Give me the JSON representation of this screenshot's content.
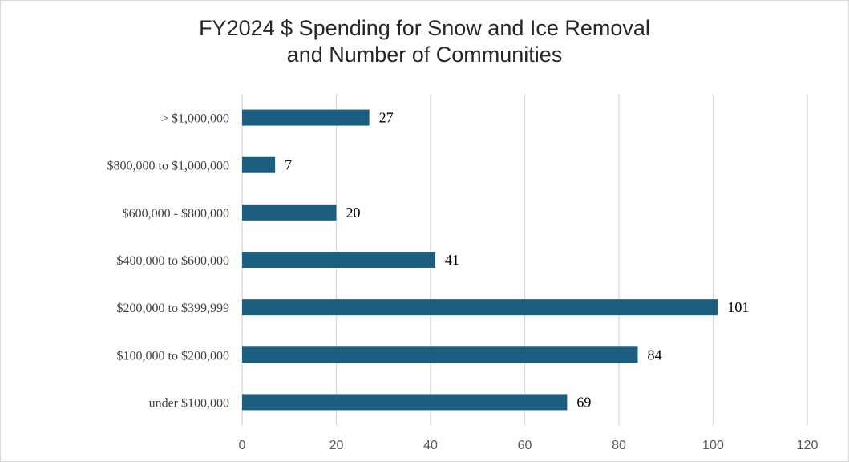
{
  "chart_data": {
    "type": "bar",
    "orientation": "horizontal",
    "title": [
      "FY2024 $ Spending for Snow and Ice Removal",
      "and Number of Communities"
    ],
    "categories": [
      "> $1,000,000",
      "$800,000 to $1,000,000",
      "$600,000 - $800,000",
      "$400,000 to $600,000",
      "$200,000 to $399,999",
      "$100,000 to $200,000",
      "under $100,000"
    ],
    "values": [
      27,
      7,
      20,
      41,
      101,
      84,
      69
    ],
    "xlim": [
      0,
      120
    ],
    "xticks": [
      0,
      20,
      40,
      60,
      80,
      100,
      120
    ],
    "xlabel": "",
    "ylabel": "",
    "grid": "vertical",
    "data_labels": true,
    "bar_color": "#1b5e80",
    "grid_color": "#d9d9d9"
  }
}
